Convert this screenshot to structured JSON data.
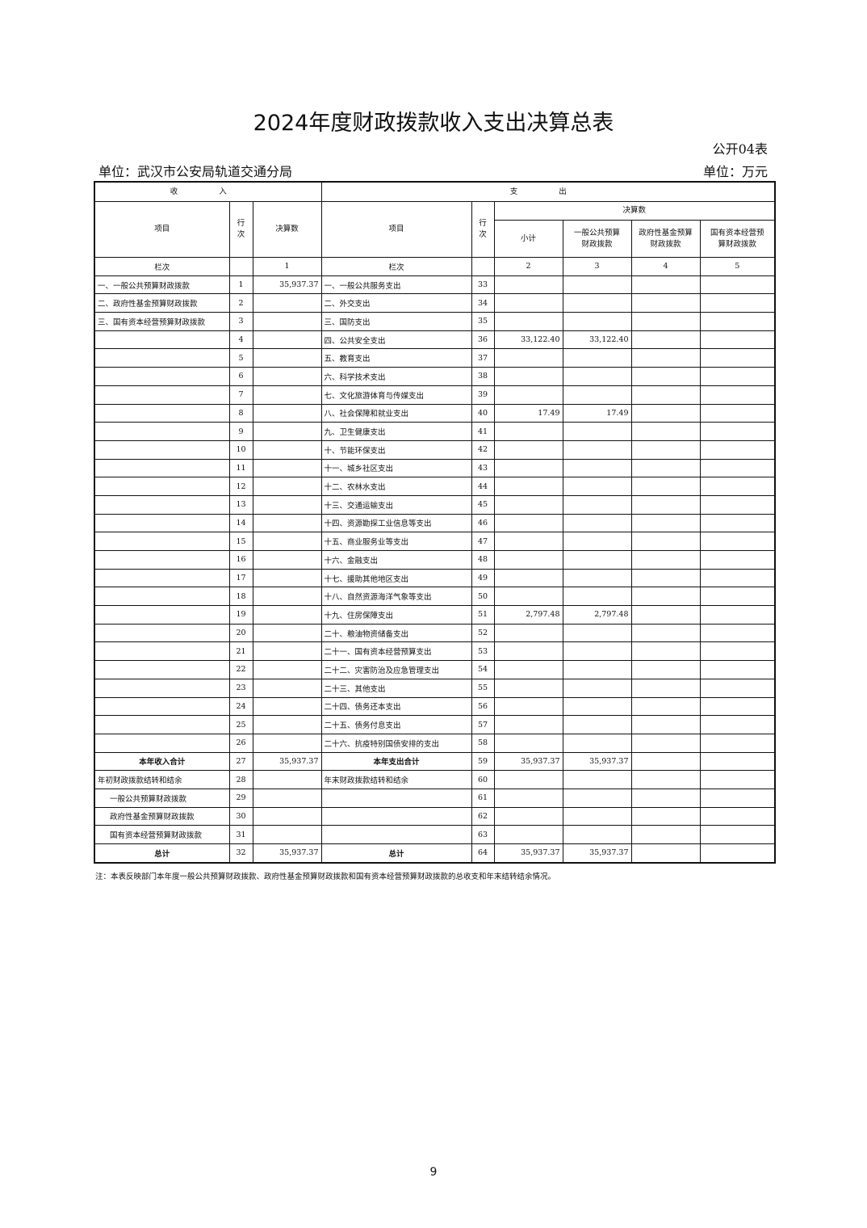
{
  "header": {
    "title": "2024年度财政拨款收入支出决算总表",
    "code": "公开04表",
    "organization": "单位：武汉市公安局轨道交通分局",
    "unit": "单位：万元"
  },
  "table": {
    "income_header": "收 入",
    "expense_header": "支 出",
    "columns": [
      "项目",
      "行次",
      "决算数",
      "项目",
      "行次"
    ],
    "budget_header": "决算数",
    "sub_columns": [
      "小计",
      "一般公共预算财政拨款",
      "政府性基金预算财政拨款",
      "国有资本经营预算财政拨款"
    ],
    "index_row": [
      "栏次",
      null,
      "1",
      "栏次",
      null,
      "2",
      "3",
      "4",
      "5"
    ],
    "rows": [
      [
        "一、一般公共预算财政拨款",
        "1",
        "35,937.37",
        "一、一般公共服务支出",
        "33",
        null,
        null,
        null,
        null
      ],
      [
        "二、政府性基金预算财政拨款",
        "2",
        null,
        "二、外交支出",
        "34",
        null,
        null,
        null,
        null
      ],
      [
        "三、国有资本经营预算财政拨款",
        "3",
        null,
        "三、国防支出",
        "35",
        null,
        null,
        null,
        null
      ],
      [
        null,
        "4",
        null,
        "四、公共安全支出",
        "36",
        "33,122.40",
        "33,122.40",
        null,
        null
      ],
      [
        null,
        "5",
        null,
        "五、教育支出",
        "37",
        null,
        null,
        null,
        null
      ],
      [
        null,
        "6",
        null,
        "六、科学技术支出",
        "38",
        null,
        null,
        null,
        null
      ],
      [
        null,
        "7",
        null,
        "七、文化旅游体育与传媒支出",
        "39",
        null,
        null,
        null,
        null
      ],
      [
        null,
        "8",
        null,
        "八、社会保障和就业支出",
        "40",
        "17.49",
        "17.49",
        null,
        null
      ],
      [
        null,
        "9",
        null,
        "九、卫生健康支出",
        "41",
        null,
        null,
        null,
        null
      ],
      [
        null,
        "10",
        null,
        "十、节能环保支出",
        "42",
        null,
        null,
        null,
        null
      ],
      [
        null,
        "11",
        null,
        "十一、城乡社区支出",
        "43",
        null,
        null,
        null,
        null
      ],
      [
        null,
        "12",
        null,
        "十二、农林水支出",
        "44",
        null,
        null,
        null,
        null
      ],
      [
        null,
        "13",
        null,
        "十三、交通运输支出",
        "45",
        null,
        null,
        null,
        null
      ],
      [
        null,
        "14",
        null,
        "十四、资源勘探工业信息等支出",
        "46",
        null,
        null,
        null,
        null
      ],
      [
        null,
        "15",
        null,
        "十五、商业服务业等支出",
        "47",
        null,
        null,
        null,
        null
      ],
      [
        null,
        "16",
        null,
        "十六、金融支出",
        "48",
        null,
        null,
        null,
        null
      ],
      [
        null,
        "17",
        null,
        "十七、援助其他地区支出",
        "49",
        null,
        null,
        null,
        null
      ],
      [
        null,
        "18",
        null,
        "十八、自然资源海洋气象等支出",
        "50",
        null,
        null,
        null,
        null
      ],
      [
        null,
        "19",
        null,
        "十九、住房保障支出",
        "51",
        "2,797.48",
        "2,797.48",
        null,
        null
      ],
      [
        null,
        "20",
        null,
        "二十、粮油物资储备支出",
        "52",
        null,
        null,
        null,
        null
      ],
      [
        null,
        "21",
        null,
        "二十一、国有资本经营预算支出",
        "53",
        null,
        null,
        null,
        null
      ],
      [
        null,
        "22",
        null,
        "二十二、灾害防治及应急管理支出",
        "54",
        null,
        null,
        null,
        null
      ],
      [
        null,
        "23",
        null,
        "二十三、其他支出",
        "55",
        null,
        null,
        null,
        null
      ],
      [
        null,
        "24",
        null,
        "二十四、债务还本支出",
        "56",
        null,
        null,
        null,
        null
      ],
      [
        null,
        "25",
        null,
        "二十五、债务付息支出",
        "57",
        null,
        null,
        null,
        null
      ],
      [
        null,
        "26",
        null,
        "二十六、抗疫特别国债安排的支出",
        "58",
        null,
        null,
        null,
        null
      ],
      [
        "本年收入合计",
        "27",
        "35,937.37",
        "本年支出合计",
        "59",
        "35,937.37",
        "35,937.37",
        null,
        null
      ],
      [
        "年初财政拨款结转和结余",
        "28",
        null,
        "年末财政拨款结转和结余",
        "60",
        null,
        null,
        null,
        null
      ],
      [
        "一般公共预算财政拨款",
        "29",
        null,
        null,
        "61",
        null,
        null,
        null,
        null
      ],
      [
        "政府性基金预算财政拨款",
        "30",
        null,
        null,
        "62",
        null,
        null,
        null,
        null
      ],
      [
        "国有资本经营预算财政拨款",
        "31",
        null,
        null,
        "63",
        null,
        null,
        null,
        null
      ],
      [
        "总计",
        "32",
        "35,937.37",
        "总计",
        "64",
        "35,937.37",
        "35,937.37",
        null,
        null
      ]
    ]
  },
  "note": "注：本表反映部门本年度一般公共预算财政拨款、政府性基金预算财政拨款和国有资本经营预算财政拨款的总收支和年末结转结余情况。",
  "page_number": "9"
}
